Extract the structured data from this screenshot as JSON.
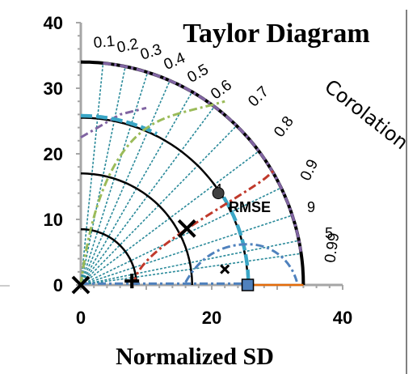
{
  "chart_data": {
    "type": "scatter",
    "title": "Taylor Diagram",
    "xlabel": "Normalized SD",
    "corr_label": "Corolation",
    "rmse_label": "RMSE",
    "xlim": [
      0,
      40
    ],
    "ylim": [
      0,
      40
    ],
    "x_ticks": [
      "0",
      "20",
      "40"
    ],
    "y_ticks": [
      "0",
      "10",
      "20",
      "30",
      "40"
    ],
    "correlation_ticks": [
      "0.1",
      "0.2",
      "0.3",
      "0.4",
      "0.5",
      "0.6",
      "0.7",
      "0.8",
      "0.9",
      "0.99"
    ],
    "rmse_arc_labels": [
      "9",
      "5",
      "4"
    ],
    "ref_sd": 34,
    "sd_arcs": [
      34,
      25.5,
      17,
      8.5
    ],
    "rmse_arcs": [
      8,
      17,
      26
    ],
    "markers": [
      {
        "shape": "x-big",
        "x": 16.2,
        "y": 8.6
      },
      {
        "shape": "x-small",
        "x": 22,
        "y": 2.4
      },
      {
        "shape": "circle",
        "x": 21,
        "y": 14
      },
      {
        "shape": "plus",
        "x": 7.8,
        "y": 0.6
      },
      {
        "shape": "square",
        "x": 25.5,
        "y": 0
      },
      {
        "shape": "x-big",
        "x": 0,
        "y": 0
      }
    ],
    "colors": {
      "sd_arc": "#000000",
      "correlation_rays": "#2a8a9a",
      "rmse_red": "#c0392b",
      "rmse_green": "#9bbb59",
      "rmse_blue": "#4f81bd",
      "rmse_cyan": "#3aa6c6",
      "purple": "#8064a2",
      "orange": "#e46c0a",
      "axis": "#a6a6a6",
      "marker_blue": "#4f81bd"
    }
  }
}
